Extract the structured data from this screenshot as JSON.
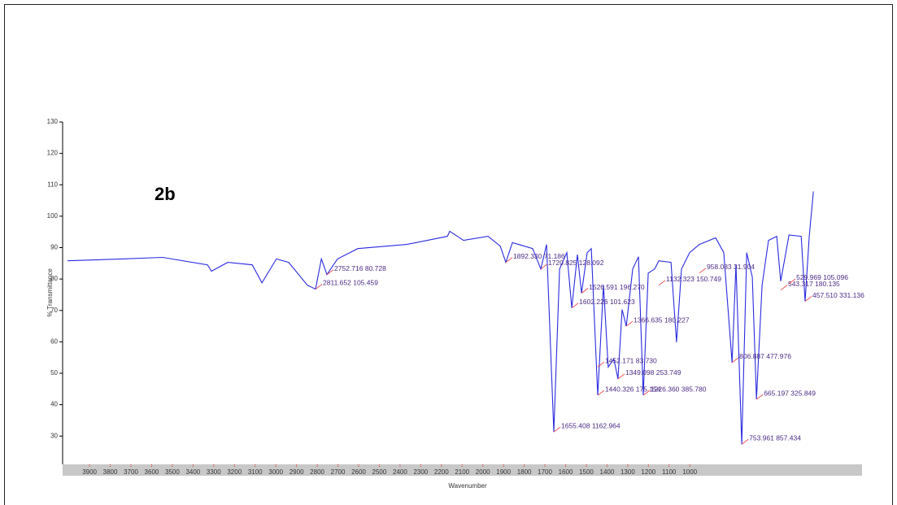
{
  "chart_data": {
    "type": "line",
    "title": "2b",
    "x_label": "Wavenumber",
    "y_label": "% Transmittance",
    "xlim": [
      4030,
      168
    ],
    "ylim": [
      21,
      130
    ],
    "xticks": [
      3900,
      3800,
      3700,
      3600,
      3500,
      3400,
      3300,
      3200,
      3100,
      3000,
      2900,
      2800,
      2700,
      2600,
      2500,
      2400,
      2300,
      2200,
      2100,
      2000,
      1900,
      1800,
      1700,
      1600,
      1500,
      1400,
      1300,
      1200,
      1100,
      1000
    ],
    "yticks": [
      30,
      40,
      50,
      60,
      70,
      80,
      90,
      100,
      110,
      120,
      130
    ],
    "series": [
      {
        "name": "2b",
        "color": "#2a2ae0",
        "x": [
          4006,
          3743,
          3547,
          3330,
          3311,
          3232,
          3114,
          3067,
          2997,
          2938,
          2847,
          2808,
          2780,
          2753,
          2702,
          2604,
          2368,
          2171,
          2160,
          2093,
          1975,
          1916,
          1889,
          1857,
          1759,
          1720,
          1692,
          1657,
          1629,
          1594,
          1570,
          1543,
          1523,
          1496,
          1476,
          1445,
          1417,
          1394,
          1367,
          1347,
          1327,
          1307,
          1276,
          1248,
          1225,
          1201,
          1170,
          1150,
          1091,
          1064,
          1040,
          1001,
          954,
          875,
          836,
          796,
          777,
          749,
          725,
          698,
          678,
          651,
          620,
          580,
          561,
          521,
          462,
          443,
          423,
          403
        ],
        "values": [
          85.8,
          86.4,
          86.9,
          84.5,
          82.5,
          85.3,
          84.5,
          78.8,
          86.4,
          85.3,
          78.0,
          76.8,
          86.4,
          81.4,
          86.4,
          89.7,
          91.0,
          93.6,
          95.2,
          92.3,
          93.6,
          90.5,
          85.3,
          91.6,
          89.7,
          83.2,
          91.0,
          31.3,
          83.2,
          88.4,
          70.8,
          87.8,
          75.5,
          88.4,
          89.7,
          43.0,
          78.0,
          52.0,
          54.6,
          48.2,
          70.3,
          65.0,
          83.2,
          87.1,
          43.0,
          81.9,
          83.2,
          85.8,
          85.3,
          59.9,
          83.2,
          88.4,
          91.0,
          93.1,
          88.4,
          53.4,
          84.5,
          27.4,
          88.4,
          80.6,
          41.7,
          78.0,
          92.3,
          93.6,
          79.3,
          94.0,
          93.6,
          72.9,
          93.6,
          107.9
        ]
      }
    ],
    "annotations": [
      {
        "text": "2752.716  80.728",
        "x": 2753,
        "y": 81.4
      },
      {
        "text": "2811.652  105.459",
        "x": 2808,
        "y": 76.8
      },
      {
        "text": "1892.330  71.186",
        "x": 1889,
        "y": 85.3
      },
      {
        "text": "1720.825  128.092",
        "x": 1720,
        "y": 83.2
      },
      {
        "text": "1602.226  101.623",
        "x": 1570,
        "y": 70.8
      },
      {
        "text": "1526.591  196.270",
        "x": 1523,
        "y": 75.5
      },
      {
        "text": "1452.171  83.730",
        "x": 1445,
        "y": 52.0
      },
      {
        "text": "1349.098  253.749",
        "x": 1347,
        "y": 48.2
      },
      {
        "text": "1366.635  180.227",
        "x": 1307,
        "y": 65.0
      },
      {
        "text": "1440.326  175.154",
        "x": 1445,
        "y": 43.0
      },
      {
        "text": "1226.360  385.780",
        "x": 1225,
        "y": 43.0
      },
      {
        "text": "1655.408  1162.964",
        "x": 1657,
        "y": 31.3
      },
      {
        "text": "1132.323  150.749",
        "x": 1150,
        "y": 78.0
      },
      {
        "text": "958.083  31.904",
        "x": 954,
        "y": 81.9
      },
      {
        "text": "806.887  477.976",
        "x": 796,
        "y": 53.4
      },
      {
        "text": "753.961  857.434",
        "x": 749,
        "y": 27.4
      },
      {
        "text": "665.197  325.849",
        "x": 678,
        "y": 41.7
      },
      {
        "text": "543.317  180.135",
        "x": 561,
        "y": 76.5
      },
      {
        "text": "529.969  105.096",
        "x": 521,
        "y": 78.5
      },
      {
        "text": "457.510  331.136",
        "x": 443,
        "y": 72.9
      }
    ]
  }
}
